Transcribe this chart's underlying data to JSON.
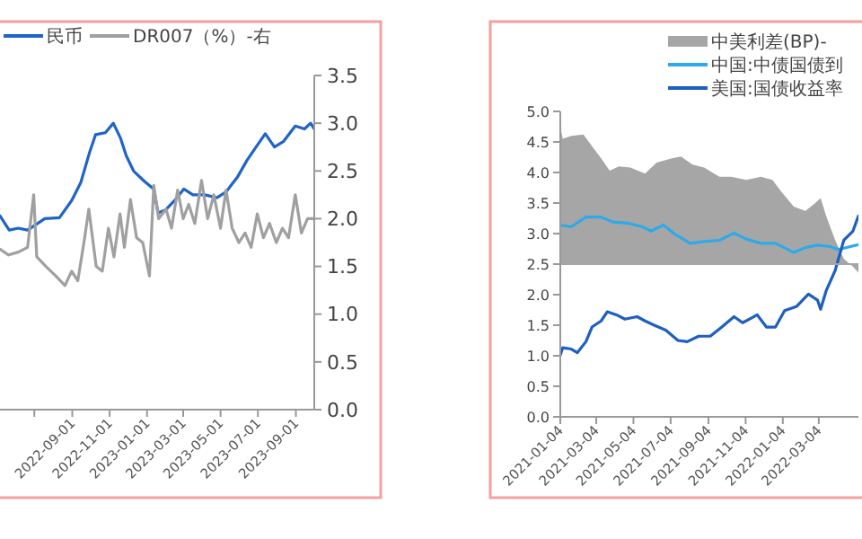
{
  "chart_data": [
    {
      "type": "line",
      "legend": "top",
      "xlim": [
        "2022-05-06",
        "2023-10-01"
      ],
      "xticks": [
        {
          "value": "2022-07-01",
          "label": null
        },
        "2022-09-01",
        "2022-11-01",
        "2023-01-01",
        "2023-03-01",
        "2023-05-01",
        "2023-07-01",
        "2023-09-01"
      ],
      "y2lim": [
        0,
        3.5
      ],
      "y2ticks": [
        {
          "value": 0,
          "label": "0.0"
        },
        0.5,
        {
          "value": 1,
          "label": "1.0"
        },
        1.5,
        {
          "value": 2,
          "label": "2.0"
        },
        2.5,
        {
          "value": 3,
          "label": "3.0"
        },
        3.5
      ],
      "series": [
        {
          "name": "民币",
          "color": "#1f64c8",
          "axis": "y2",
          "x": [
            "2022-05-06",
            "2022-05-21",
            "2022-06-05",
            "2022-06-20",
            "2022-07-04",
            "2022-07-18",
            "2022-08-11",
            "2022-08-31",
            "2022-09-15",
            "2022-09-29",
            "2022-10-09",
            "2022-10-25",
            "2022-11-07",
            "2022-11-19",
            "2022-11-28",
            "2022-12-10",
            "2022-12-28",
            "2023-01-12",
            "2023-01-19",
            "2023-01-31",
            "2023-02-15",
            "2023-03-02",
            "2023-03-17",
            "2023-04-05",
            "2023-04-25",
            "2023-05-10",
            "2023-05-29",
            "2023-06-13",
            "2023-06-28",
            "2023-07-13",
            "2023-07-28",
            "2023-08-12",
            "2023-08-31",
            "2023-09-15",
            "2023-09-25",
            "2023-10-01"
          ],
          "values": [
            2.03,
            1.88,
            1.9,
            1.88,
            1.94,
            2.0,
            2.01,
            2.19,
            2.38,
            2.69,
            2.88,
            2.9,
            3.0,
            2.84,
            2.66,
            2.5,
            2.39,
            2.31,
            2.06,
            2.09,
            2.19,
            2.31,
            2.25,
            2.25,
            2.22,
            2.28,
            2.44,
            2.61,
            2.75,
            2.89,
            2.75,
            2.81,
            2.97,
            2.94,
            3.0,
            2.94
          ]
        },
        {
          "name": "DR007（%）-右",
          "color": "#a0a0a0",
          "axis": "y2",
          "x": [
            "2022-05-06",
            "2022-05-20",
            "2022-06-05",
            "2022-06-20",
            "2022-06-30",
            "2022-07-05",
            "2022-07-20",
            "2022-08-05",
            "2022-08-20",
            "2022-08-31",
            "2022-09-10",
            "2022-09-20",
            "2022-09-28",
            "2022-10-10",
            "2022-10-20",
            "2022-10-30",
            "2022-11-08",
            "2022-11-18",
            "2022-11-25",
            "2022-12-05",
            "2022-12-15",
            "2022-12-25",
            "2023-01-05",
            "2023-01-12",
            "2023-01-20",
            "2023-02-01",
            "2023-02-10",
            "2023-02-20",
            "2023-03-01",
            "2023-03-10",
            "2023-03-20",
            "2023-03-31",
            "2023-04-10",
            "2023-04-20",
            "2023-05-01",
            "2023-05-10",
            "2023-05-20",
            "2023-05-31",
            "2023-06-10",
            "2023-06-20",
            "2023-06-30",
            "2023-07-10",
            "2023-07-20",
            "2023-07-31",
            "2023-08-10",
            "2023-08-20",
            "2023-08-31",
            "2023-09-10",
            "2023-09-20",
            "2023-10-01"
          ],
          "values": [
            1.68,
            1.62,
            1.65,
            1.7,
            2.25,
            1.6,
            1.5,
            1.4,
            1.3,
            1.45,
            1.35,
            1.75,
            2.1,
            1.5,
            1.45,
            1.9,
            1.6,
            2.05,
            1.7,
            2.2,
            1.8,
            1.75,
            1.4,
            2.35,
            2.0,
            2.1,
            1.9,
            2.3,
            2.0,
            2.15,
            1.95,
            2.4,
            2.0,
            2.25,
            1.9,
            2.3,
            1.9,
            1.75,
            1.85,
            1.7,
            2.05,
            1.8,
            1.95,
            1.75,
            1.9,
            1.8,
            2.25,
            1.85,
            2.0,
            2.0
          ]
        }
      ]
    },
    {
      "type": "line",
      "legend": "top right",
      "xlim": [
        "2021-01-04",
        "2022-05-08"
      ],
      "xticks": [
        "2021-01-04",
        "2021-03-04",
        "2021-05-04",
        "2021-07-04",
        "2021-09-04",
        "2021-11-04",
        "2022-01-04",
        "2022-03-04"
      ],
      "ylim": [
        0,
        5
      ],
      "ref_lines": [
        {
          "axis": "y",
          "value": 2.5,
          "color": "#a6a6a6"
        }
      ],
      "yticks": [
        {
          "value": 0,
          "label": "0.0"
        },
        0.5,
        {
          "value": 1,
          "label": "1.0"
        },
        1.5,
        {
          "value": 2,
          "label": "2.0"
        },
        2.5,
        {
          "value": 3,
          "label": "3.0"
        },
        3.5,
        {
          "value": 4,
          "label": "4.0"
        },
        4.5,
        {
          "value": 5,
          "label": "5.0"
        }
      ],
      "series": [
        {
          "name": "中美利差(BP)-",
          "type": "area",
          "color": "#a6a6a6",
          "x": [
            "2021-01-04",
            "2021-01-08",
            "2021-01-22",
            "2021-02-11",
            "2021-02-25",
            "2021-03-12",
            "2021-03-26",
            "2021-04-10",
            "2021-04-29",
            "2021-05-23",
            "2021-06-11",
            "2021-07-06",
            "2021-07-21",
            "2021-08-09",
            "2021-08-28",
            "2021-09-22",
            "2021-10-11",
            "2021-11-05",
            "2021-11-29",
            "2021-12-18",
            "2022-01-02",
            "2022-01-22",
            "2022-02-10",
            "2022-02-25",
            "2022-03-07",
            "2022-03-16",
            "2022-03-31",
            "2022-04-14",
            "2022-04-29",
            "2022-05-08"
          ],
          "values": [
            4.75,
            4.55,
            4.6,
            4.62,
            4.43,
            4.23,
            4.03,
            4.1,
            4.08,
            3.98,
            4.16,
            4.23,
            4.26,
            4.13,
            4.08,
            3.93,
            3.93,
            3.88,
            3.93,
            3.88,
            3.68,
            3.44,
            3.37,
            3.49,
            3.58,
            3.29,
            2.89,
            2.59,
            2.46,
            2.36
          ]
        },
        {
          "name": "中国:中债国债到",
          "color": "#2eaae8",
          "x": [
            "2021-01-04",
            "2021-01-22",
            "2021-02-15",
            "2021-03-12",
            "2021-03-31",
            "2021-04-25",
            "2021-05-19",
            "2021-06-02",
            "2021-06-22",
            "2021-07-11",
            "2021-08-05",
            "2021-08-28",
            "2021-09-22",
            "2021-10-16",
            "2021-11-05",
            "2021-11-29",
            "2021-12-23",
            "2022-01-22",
            "2022-02-10",
            "2022-03-02",
            "2022-03-21",
            "2022-04-05",
            "2022-05-08"
          ],
          "values": [
            3.14,
            3.11,
            3.27,
            3.27,
            3.19,
            3.17,
            3.11,
            3.04,
            3.14,
            2.99,
            2.84,
            2.87,
            2.89,
            3.01,
            2.91,
            2.84,
            2.84,
            2.69,
            2.77,
            2.81,
            2.79,
            2.74,
            2.82
          ]
        },
        {
          "name": "美国:国债收益率",
          "color": "#1e5fc0",
          "x": [
            "2021-01-04",
            "2021-01-08",
            "2021-01-22",
            "2021-02-01",
            "2021-02-15",
            "2021-02-25",
            "2021-03-12",
            "2021-03-22",
            "2021-04-06",
            "2021-04-20",
            "2021-05-10",
            "2021-05-23",
            "2021-06-07",
            "2021-06-26",
            "2021-07-16",
            "2021-07-31",
            "2021-08-19",
            "2021-09-07",
            "2021-09-26",
            "2021-10-16",
            "2021-10-30",
            "2021-11-14",
            "2021-11-23",
            "2021-12-08",
            "2021-12-23",
            "2022-01-07",
            "2022-01-27",
            "2022-02-15",
            "2022-03-02",
            "2022-03-07",
            "2022-03-16",
            "2022-03-31",
            "2022-04-14",
            "2022-04-29",
            "2022-05-08"
          ],
          "values": [
            1.01,
            1.13,
            1.11,
            1.05,
            1.23,
            1.47,
            1.57,
            1.72,
            1.67,
            1.6,
            1.64,
            1.57,
            1.5,
            1.42,
            1.25,
            1.23,
            1.32,
            1.32,
            1.47,
            1.64,
            1.54,
            1.62,
            1.67,
            1.47,
            1.47,
            1.74,
            1.81,
            2.01,
            1.91,
            1.76,
            2.06,
            2.4,
            2.89,
            3.04,
            3.29
          ]
        }
      ]
    }
  ]
}
